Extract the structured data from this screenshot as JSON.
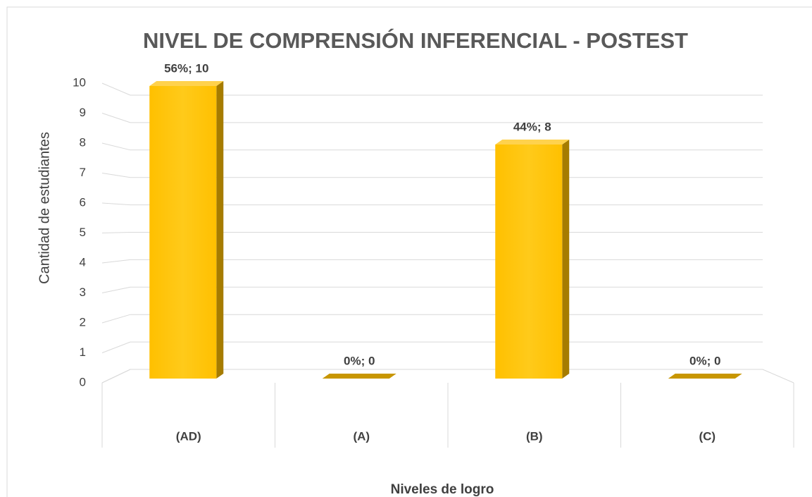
{
  "chart_data": {
    "type": "bar3d",
    "title": "NIVEL DE COMPRENSIÓN INFERENCIAL - POSTEST",
    "x_label": "Niveles de logro",
    "y_label": "Cantidad de estudiantes",
    "categories": [
      "(AD)",
      "(A)",
      "(B)",
      "(C)"
    ],
    "values": [
      10,
      0,
      8,
      0
    ],
    "value_labels": [
      "56%; 10",
      "0%; 0",
      "44%; 8",
      "0%; 0"
    ],
    "color": "#ffc000",
    "ylim": [
      0,
      10
    ],
    "yticks": [
      0,
      1,
      2,
      3,
      4,
      5,
      6,
      7,
      8,
      9,
      10
    ],
    "grid": true
  }
}
